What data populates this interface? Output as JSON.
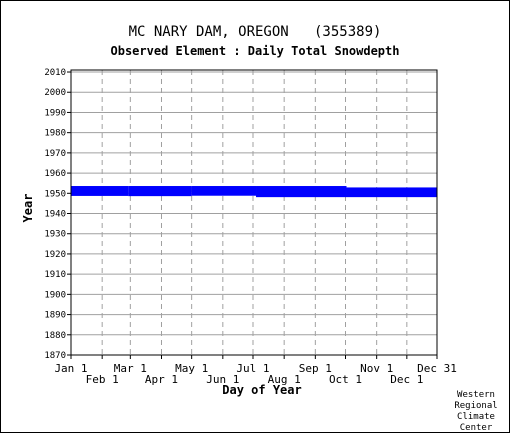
{
  "chart_data": {
    "type": "bar",
    "title": "MC NARY DAM, OREGON   (355389)",
    "subtitle": "Observed Element : Daily Total Snowdepth",
    "xlabel": "Day of Year",
    "ylabel": "Year",
    "ylim": [
      1870,
      2011
    ],
    "yticks": [
      1870,
      1880,
      1890,
      1900,
      1910,
      1920,
      1930,
      1940,
      1950,
      1960,
      1970,
      1980,
      1990,
      2000,
      2010
    ],
    "xlim": [
      1,
      365
    ],
    "xticks_upper": [
      {
        "label": "Jan 1",
        "day": 1
      },
      {
        "label": "Mar 1",
        "day": 60
      },
      {
        "label": "May 1",
        "day": 121
      },
      {
        "label": "Jul 1",
        "day": 182
      },
      {
        "label": "Sep 1",
        "day": 244
      },
      {
        "label": "Nov 1",
        "day": 305
      },
      {
        "label": "Dec 31",
        "day": 365
      }
    ],
    "xticks_lower": [
      {
        "label": "Feb 1",
        "day": 32
      },
      {
        "label": "Apr 1",
        "day": 91
      },
      {
        "label": "Jun 1",
        "day": 152
      },
      {
        "label": "Aug 1",
        "day": 213
      },
      {
        "label": "Oct 1",
        "day": 274
      },
      {
        "label": "Dec 1",
        "day": 335
      }
    ],
    "grid": true,
    "bar_color": "#0000ff",
    "coverage": [
      {
        "start_day": 1,
        "end_day": 58,
        "start_year": 1948.7,
        "end_year": 1953.6
      },
      {
        "start_day": 58,
        "end_day": 121,
        "start_year": 1948.6,
        "end_year": 1953.6
      },
      {
        "start_day": 121,
        "end_day": 185,
        "start_year": 1948.8,
        "end_year": 1953.6
      },
      {
        "start_day": 185,
        "end_day": 275,
        "start_year": 1948.1,
        "end_year": 1953.6
      },
      {
        "start_day": 275,
        "end_day": 365,
        "start_year": 1948.1,
        "end_year": 1952.9
      }
    ]
  },
  "credit": [
    "Western",
    "Regional",
    "Climate",
    "Center"
  ]
}
